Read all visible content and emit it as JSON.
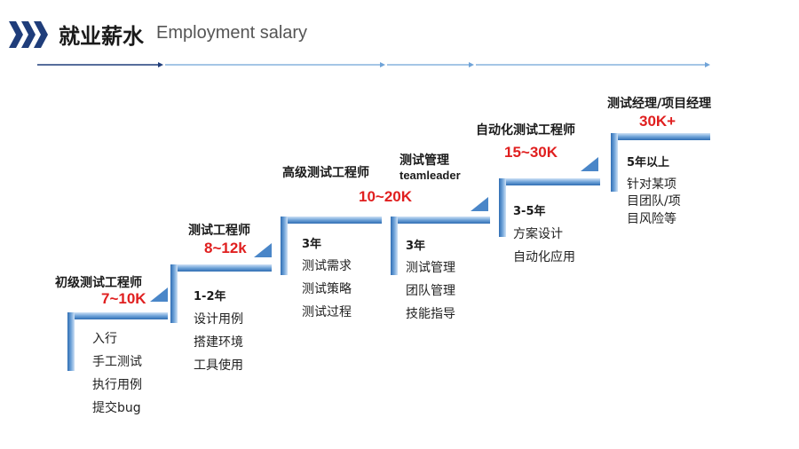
{
  "header": {
    "title_cn": "就业薪水",
    "title_en": "Employment salary"
  },
  "colors": {
    "step_blue": "#4a86c8",
    "step_light": "#dbe9f7",
    "salary_red": "#e01f1f",
    "chevron_navy": "#1f3d7a"
  },
  "stages": [
    {
      "role": "初级测试工程师",
      "salary": "7~10K",
      "years": "",
      "items": [
        "入行",
        "手工测试",
        "执行用例",
        "提交bug"
      ]
    },
    {
      "role": "测试工程师",
      "salary": "8~12k",
      "years": "1-2年",
      "items": [
        "设计用例",
        "搭建环境",
        "工具使用"
      ]
    },
    {
      "role": "高级测试工程师",
      "salary": "10~20K",
      "years": "3年",
      "items": [
        "测试需求",
        "测试策略",
        "测试过程"
      ]
    },
    {
      "role": "测试管理",
      "role_sub": "teamleader",
      "salary": "",
      "years": "3年",
      "items": [
        "测试管理",
        "团队管理",
        "技能指导"
      ]
    },
    {
      "role": "自动化测试工程师",
      "salary": "15~30K",
      "years": "3-5年",
      "items": [
        "方案设计",
        "自动化应用"
      ]
    },
    {
      "role": "测试经理/项目经理",
      "salary": "30K+",
      "years": "5年以上",
      "items": [
        "针对某项",
        "目团队/项",
        "目风险等"
      ]
    }
  ]
}
